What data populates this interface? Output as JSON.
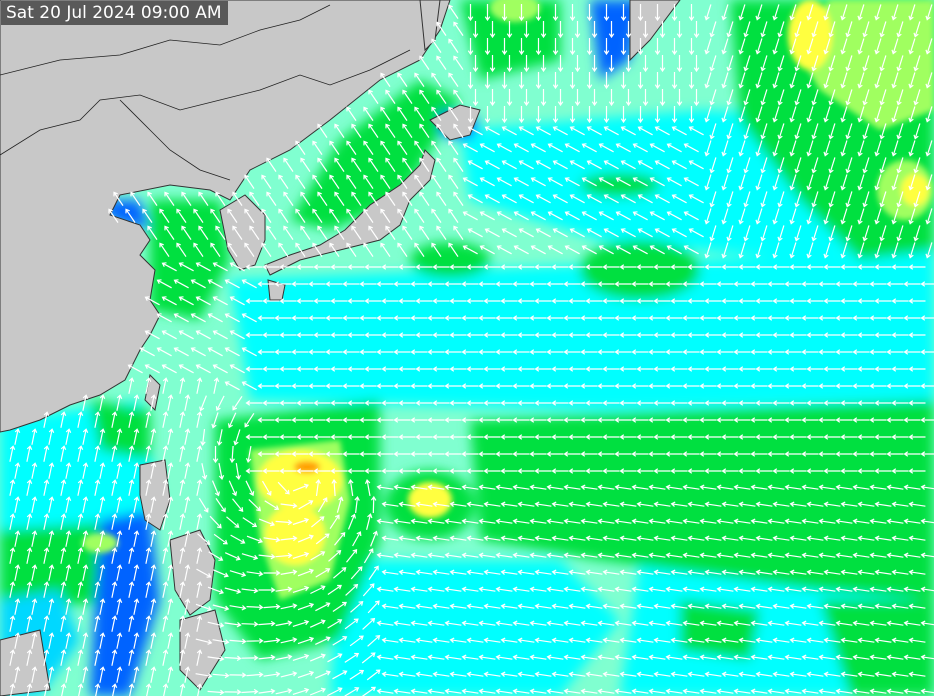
{
  "map": {
    "timestamp": "Sat 20 Jul 2024 09:00 AM",
    "colors": {
      "land": "#c8c8c8",
      "coastline": "#333333",
      "calm": "#0000e0",
      "level_1": "#0063ff",
      "level_2": "#00d8ff",
      "level_3": "#00ffff",
      "level_4": "#80ffd0",
      "level_5": "#00ff60",
      "level_6": "#00e040",
      "level_7": "#a0ff60",
      "level_8": "#ffff40",
      "level_9": "#ffa000",
      "arrows": "#ffffff"
    }
  }
}
